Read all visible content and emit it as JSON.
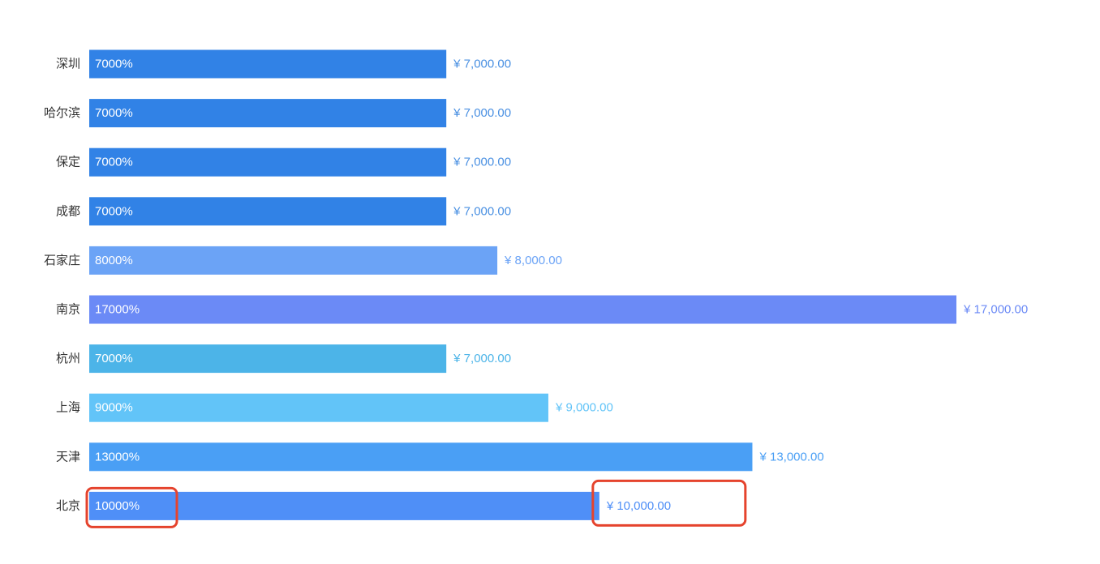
{
  "chart_data": {
    "type": "bar",
    "orientation": "horizontal",
    "categories": [
      "深圳",
      "哈尔滨",
      "保定",
      "成都",
      "石家庄",
      "南京",
      "杭州",
      "上海",
      "天津",
      "北京"
    ],
    "values": [
      7000,
      7000,
      7000,
      7000,
      8000,
      17000,
      7000,
      9000,
      13000,
      10000
    ],
    "bar_labels": [
      "7000%",
      "7000%",
      "7000%",
      "7000%",
      "8000%",
      "17000%",
      "7000%",
      "9000%",
      "13000%",
      "10000%"
    ],
    "value_labels": [
      "¥ 7,000.00",
      "¥ 7,000.00",
      "¥ 7,000.00",
      "¥ 7,000.00",
      "¥ 8,000.00",
      "¥ 17,000.00",
      "¥ 7,000.00",
      "¥ 9,000.00",
      "¥ 13,000.00",
      "¥ 10,000.00"
    ],
    "colors": [
      "#3182e6",
      "#3182e6",
      "#3182e6",
      "#3182e6",
      "#6ba3f6",
      "#6b8af6",
      "#4cb4e8",
      "#62c4f8",
      "#4a9ff5",
      "#4f8ff7"
    ],
    "value_label_colors": [
      "#4a90e2",
      "#4a90e2",
      "#4a90e2",
      "#4a90e2",
      "#6ba3f6",
      "#6b8af6",
      "#4cb4e8",
      "#62c4f8",
      "#4a9ff5",
      "#4f8ff7"
    ],
    "xlim": [
      0,
      17000
    ],
    "grid": false,
    "legend": "none",
    "annotations": [
      {
        "target": "bar_label",
        "index": 9,
        "color": "#e5432d"
      },
      {
        "target": "value_label",
        "index": 9,
        "color": "#e5432d"
      }
    ]
  }
}
